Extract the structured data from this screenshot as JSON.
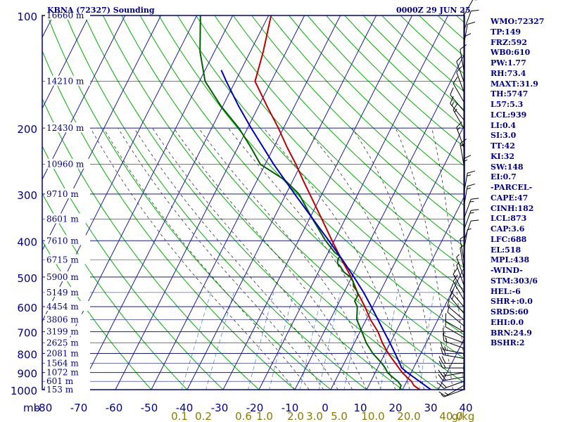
{
  "header": {
    "title": "KBNA (72327) Sounding",
    "datetime": "0000Z 29 JUN 25"
  },
  "indices": [
    "WMO:72327",
    "TP:149",
    "FRZ:592",
    "WB0:610",
    "PW:1.77",
    "RH:73.4",
    "MAXT:31.9",
    "TH:5747",
    "L57:5.3",
    "LCL:939",
    "LI:0.4",
    "SI:3.0",
    "TT:42",
    "KI:32",
    "SW:148",
    "EI:0.7",
    "-PARCEL-",
    "CAPE:47",
    "CINH:182",
    "LCL:873",
    "CAP:3.6",
    "LFC:688",
    "EL:518",
    "MPL:438",
    "-WIND-",
    "STM:303/6",
    "HEL:-6",
    "SHR+:0.0",
    "SRDS:60",
    "EHI:0.0",
    "BRN:24.9",
    "BSHR:2"
  ],
  "colors": {
    "background": "#ffffff",
    "frame": "#00008b",
    "grid": "#1a1aa8",
    "isotherm": "#1a1aa8",
    "dry_adiabat": "#00b000",
    "moist_adiabat": "#333333",
    "mixing_ratio": "#5a8fd0",
    "temperature": "#c00000",
    "dewpoint": "#006000",
    "parcel": "#0000c0",
    "label": "#00008b",
    "mixing_label": "#8b7a00",
    "wind_barb": "#000000"
  },
  "chart_data": {
    "type": "line",
    "chart_kind": "Skew-T log-P thermodynamic diagram",
    "x_axis": {
      "unit_label": "mb",
      "ticks": [
        -80,
        -70,
        -60,
        -50,
        -40,
        -30,
        -20,
        -10,
        0,
        10,
        20,
        30,
        40
      ],
      "tick_labels": [
        "-80",
        "-70",
        "-60",
        "-50",
        "-40",
        "-30",
        "-20",
        "-10",
        "0",
        "10",
        "20",
        "30",
        "40"
      ],
      "range": [
        -80,
        40
      ]
    },
    "y_axis": {
      "scale": "log",
      "ticks": [
        100,
        200,
        300,
        400,
        500,
        600,
        700,
        800,
        900,
        1000
      ],
      "tick_labels": [
        "100",
        "200",
        "300",
        "400",
        "500",
        "600",
        "700",
        "800",
        "900",
        "1000"
      ],
      "range": [
        1000,
        100
      ],
      "minor_levels": [
        150,
        250,
        350,
        450,
        550,
        650,
        750,
        850,
        950
      ]
    },
    "height_labels": [
      {
        "p": 100,
        "label": "16660 m"
      },
      {
        "p": 150,
        "label": "14210 m"
      },
      {
        "p": 200,
        "label": "12430 m"
      },
      {
        "p": 250,
        "label": "10960 m"
      },
      {
        "p": 300,
        "label": "9710 m"
      },
      {
        "p": 350,
        "label": "8601 m"
      },
      {
        "p": 400,
        "label": "7610 m"
      },
      {
        "p": 450,
        "label": "6715 m"
      },
      {
        "p": 500,
        "label": "5900 m"
      },
      {
        "p": 550,
        "label": "5149 m"
      },
      {
        "p": 600,
        "label": "4454 m"
      },
      {
        "p": 650,
        "label": "3806 m"
      },
      {
        "p": 700,
        "label": "3199 m"
      },
      {
        "p": 750,
        "label": "2625 m"
      },
      {
        "p": 800,
        "label": "2081 m"
      },
      {
        "p": 850,
        "label": "1564 m"
      },
      {
        "p": 900,
        "label": "1072 m"
      },
      {
        "p": 950,
        "label": "601 m"
      },
      {
        "p": 1000,
        "label": "153 m"
      }
    ],
    "mixing_ratio_labels": [
      "0.1",
      "0.2",
      "0.6",
      "1.0",
      "2.0",
      "3.0",
      "5.0",
      "10.0",
      "20.0",
      "40.0",
      "g/kg"
    ],
    "series": [
      {
        "id": "temperature",
        "points": [
          [
            1000,
            24.8
          ],
          [
            975,
            22.6
          ],
          [
            950,
            21.3
          ],
          [
            925,
            19.4
          ],
          [
            900,
            17.5
          ],
          [
            850,
            14.3
          ],
          [
            800,
            10.9
          ],
          [
            750,
            7.8
          ],
          [
            700,
            5.0
          ],
          [
            650,
            1.2
          ],
          [
            600,
            -2.2
          ],
          [
            550,
            -6.2
          ],
          [
            500,
            -10.2
          ],
          [
            450,
            -15.2
          ],
          [
            400,
            -20.6
          ],
          [
            350,
            -26.5
          ],
          [
            300,
            -33.4
          ],
          [
            275,
            -37.3
          ],
          [
            250,
            -41.4
          ],
          [
            225,
            -46.3
          ],
          [
            200,
            -51.4
          ],
          [
            175,
            -57.6
          ],
          [
            150,
            -64.5
          ],
          [
            125,
            -66.4
          ],
          [
            100,
            -69.3
          ]
        ]
      },
      {
        "id": "dewpoint",
        "points": [
          [
            1000,
            19.2
          ],
          [
            975,
            19.0
          ],
          [
            950,
            17.5
          ],
          [
            925,
            15.4
          ],
          [
            900,
            13.4
          ],
          [
            875,
            12.1
          ],
          [
            850,
            10.5
          ],
          [
            800,
            6.6
          ],
          [
            750,
            3.3
          ],
          [
            700,
            0.5
          ],
          [
            650,
            -2.6
          ],
          [
            600,
            -4.3
          ],
          [
            580,
            -5.8
          ],
          [
            560,
            -5.7
          ],
          [
            545,
            -6.6
          ],
          [
            530,
            -8.2
          ],
          [
            515,
            -8.9
          ],
          [
            500,
            -10.4
          ],
          [
            485,
            -12.9
          ],
          [
            470,
            -14.5
          ],
          [
            460,
            -15.9
          ],
          [
            450,
            -16.3
          ],
          [
            440,
            -16.3
          ],
          [
            430,
            -18.2
          ],
          [
            400,
            -22.4
          ],
          [
            350,
            -29.1
          ],
          [
            300,
            -36.4
          ],
          [
            275,
            -42.4
          ],
          [
            250,
            -51.3
          ],
          [
            225,
            -56.4
          ],
          [
            200,
            -62.4
          ],
          [
            175,
            -70.4
          ],
          [
            150,
            -78.4
          ],
          [
            125,
            -84.0
          ],
          [
            100,
            -89.0
          ]
        ]
      },
      {
        "id": "parcel",
        "points": [
          [
            1000,
            27.9
          ],
          [
            950,
            23.5
          ],
          [
            900,
            18.9
          ],
          [
            873,
            16.6
          ],
          [
            850,
            15.5
          ],
          [
            800,
            12.8
          ],
          [
            750,
            9.9
          ],
          [
            700,
            6.7
          ],
          [
            650,
            3.3
          ],
          [
            600,
            -0.4
          ],
          [
            550,
            -4.5
          ],
          [
            500,
            -9.4
          ],
          [
            450,
            -15.0
          ],
          [
            400,
            -21.5
          ],
          [
            350,
            -29.0
          ],
          [
            300,
            -37.6
          ],
          [
            250,
            -47.6
          ],
          [
            200,
            -59.0
          ],
          [
            175,
            -65.5
          ],
          [
            150,
            -72.5
          ],
          [
            140,
            -75.5
          ]
        ]
      }
    ],
    "wind_barbs": [
      {
        "p": 1000,
        "dir": 250,
        "spd": 5
      },
      {
        "p": 975,
        "dir": 240,
        "spd": 15
      },
      {
        "p": 950,
        "dir": 250,
        "spd": 20
      },
      {
        "p": 925,
        "dir": 260,
        "spd": 20
      },
      {
        "p": 900,
        "dir": 260,
        "spd": 15
      },
      {
        "p": 875,
        "dir": 270,
        "spd": 15
      },
      {
        "p": 850,
        "dir": 270,
        "spd": 20
      },
      {
        "p": 825,
        "dir": 280,
        "spd": 20
      },
      {
        "p": 800,
        "dir": 280,
        "spd": 15
      },
      {
        "p": 775,
        "dir": 290,
        "spd": 15
      },
      {
        "p": 750,
        "dir": 290,
        "spd": 10
      },
      {
        "p": 725,
        "dir": 300,
        "spd": 10
      },
      {
        "p": 700,
        "dir": 300,
        "spd": 10
      },
      {
        "p": 675,
        "dir": 310,
        "spd": 10
      },
      {
        "p": 650,
        "dir": 310,
        "spd": 10
      },
      {
        "p": 625,
        "dir": 320,
        "spd": 15
      },
      {
        "p": 600,
        "dir": 320,
        "spd": 15
      },
      {
        "p": 575,
        "dir": 330,
        "spd": 10
      },
      {
        "p": 550,
        "dir": 330,
        "spd": 10
      },
      {
        "p": 525,
        "dir": 340,
        "spd": 5
      },
      {
        "p": 500,
        "dir": 340,
        "spd": 5
      },
      {
        "p": 475,
        "dir": 350,
        "spd": 5
      },
      {
        "p": 450,
        "dir": 350,
        "spd": 5
      },
      {
        "p": 425,
        "dir": 10,
        "spd": 5
      },
      {
        "p": 400,
        "dir": 20,
        "spd": 10
      },
      {
        "p": 375,
        "dir": 20,
        "spd": 15
      },
      {
        "p": 350,
        "dir": 20,
        "spd": 15
      },
      {
        "p": 325,
        "dir": 10,
        "spd": 15
      },
      {
        "p": 300,
        "dir": 10,
        "spd": 15
      },
      {
        "p": 275,
        "dir": 0,
        "spd": 15
      },
      {
        "p": 250,
        "dir": 350,
        "spd": 15
      },
      {
        "p": 225,
        "dir": 340,
        "spd": 15
      },
      {
        "p": 200,
        "dir": 330,
        "spd": 15
      },
      {
        "p": 190,
        "dir": 320,
        "spd": 15
      },
      {
        "p": 180,
        "dir": 320,
        "spd": 10
      },
      {
        "p": 170,
        "dir": 330,
        "spd": 10
      },
      {
        "p": 160,
        "dir": 340,
        "spd": 10
      },
      {
        "p": 150,
        "dir": 340,
        "spd": 10
      },
      {
        "p": 140,
        "dir": 350,
        "spd": 10
      },
      {
        "p": 130,
        "dir": 0,
        "spd": 10
      },
      {
        "p": 120,
        "dir": 10,
        "spd": 10
      },
      {
        "p": 110,
        "dir": 20,
        "spd": 10
      },
      {
        "p": 100,
        "dir": 30,
        "spd": 15
      }
    ]
  }
}
